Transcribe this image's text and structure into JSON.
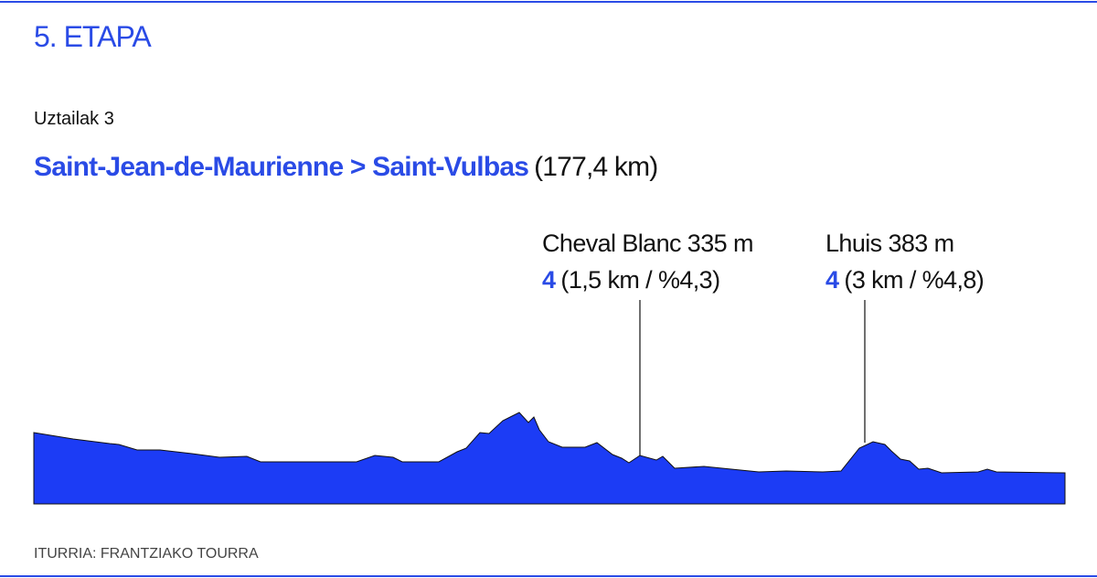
{
  "header": {
    "title": "5. ETAPA",
    "date": "Uztailak 3",
    "route": "Saint-Jean-de-Maurienne > Saint-Vulbas",
    "distance": "(177,4 km)"
  },
  "climbs": [
    {
      "name": "Cheval Blanc 335 m",
      "category": "4",
      "detail": "(1,5 km / %4,3)"
    },
    {
      "name": "Lhuis 383 m",
      "category": "4",
      "detail": "(3 km / %4,8)"
    }
  ],
  "footer": {
    "source": "ITURRIA: FRANTZIAKO TOURRA"
  }
}
